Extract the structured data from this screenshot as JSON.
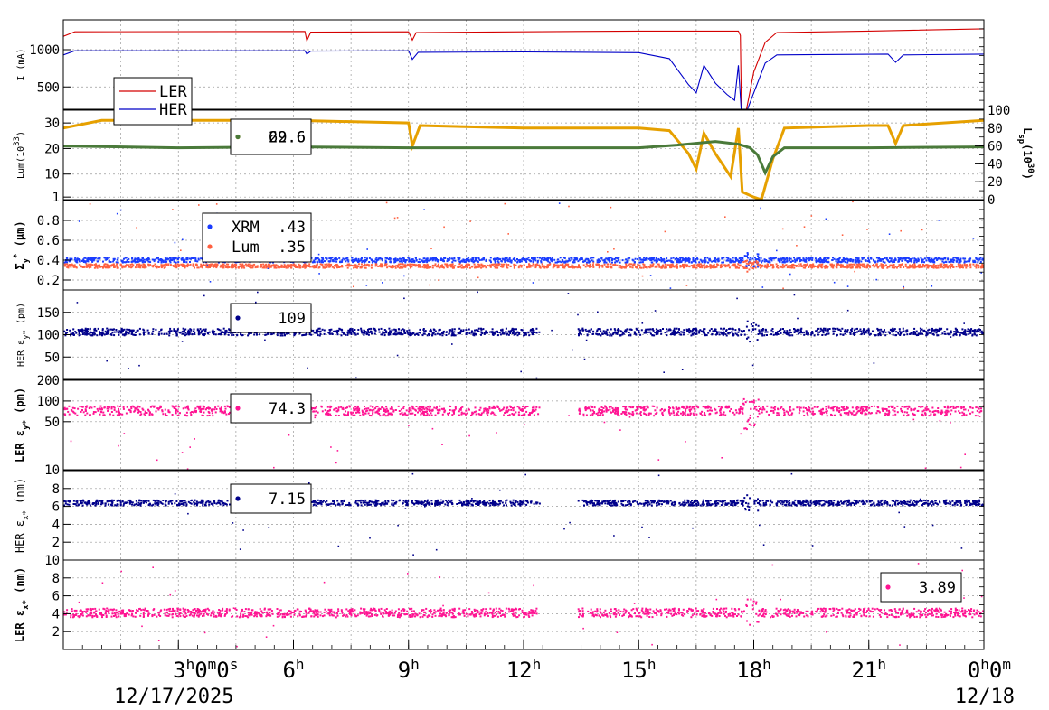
{
  "chart_data": {
    "type": "line",
    "x_axis": {
      "ticks": [
        {
          "hour": 3,
          "main": "3",
          "sup": "h",
          "tail": "0",
          "tail_sup": "m",
          "tail2": "0",
          "tail2_sup": "s"
        },
        {
          "hour": 6,
          "main": "6",
          "sup": "h"
        },
        {
          "hour": 9,
          "main": "9",
          "sup": "h"
        },
        {
          "hour": 12,
          "main": "12",
          "sup": "h"
        },
        {
          "hour": 15,
          "main": "15",
          "sup": "h"
        },
        {
          "hour": 18,
          "main": "18",
          "sup": "h"
        },
        {
          "hour": 21,
          "main": "21",
          "sup": "h"
        },
        {
          "hour": 24,
          "main": "0",
          "sup": "h",
          "tail": "0",
          "tail_sup": "m"
        }
      ],
      "start_date": "12/17/2025",
      "end_date": "12/18",
      "range_hours": [
        0,
        24
      ]
    },
    "panels": [
      {
        "id": "current",
        "ylabel": "I (mA)",
        "ylim": [
          200,
          1400
        ],
        "yticks": [
          500,
          1000
        ],
        "grid": true,
        "legend": [
          {
            "name": "LER",
            "color": "#d40000"
          },
          {
            "name": "HER",
            "color": "#0000c8"
          }
        ],
        "series": [
          {
            "name": "LER",
            "color": "#d40000",
            "points": [
              [
                0,
                1180
              ],
              [
                0.3,
                1240
              ],
              [
                6.3,
                1245
              ],
              [
                6.35,
                1120
              ],
              [
                6.45,
                1235
              ],
              [
                9.0,
                1240
              ],
              [
                9.1,
                1130
              ],
              [
                9.2,
                1230
              ],
              [
                12.0,
                1240
              ],
              [
                15.0,
                1250
              ],
              [
                17.6,
                1250
              ],
              [
                17.65,
                1190
              ],
              [
                17.68,
                160
              ],
              [
                17.8,
                170
              ],
              [
                18.0,
                700
              ],
              [
                18.3,
                1100
              ],
              [
                18.6,
                1230
              ],
              [
                21.0,
                1250
              ],
              [
                24.0,
                1280
              ]
            ]
          },
          {
            "name": "HER",
            "color": "#0000c8",
            "points": [
              [
                0,
                930
              ],
              [
                0.3,
                985
              ],
              [
                6.3,
                985
              ],
              [
                6.35,
                940
              ],
              [
                6.45,
                980
              ],
              [
                9.0,
                985
              ],
              [
                9.1,
                870
              ],
              [
                9.25,
                965
              ],
              [
                12.0,
                970
              ],
              [
                15.0,
                960
              ],
              [
                15.8,
                880
              ],
              [
                16.3,
                530
              ],
              [
                16.5,
                420
              ],
              [
                16.7,
                790
              ],
              [
                17.0,
                550
              ],
              [
                17.3,
                400
              ],
              [
                17.5,
                320
              ],
              [
                17.6,
                790
              ],
              [
                17.68,
                140
              ],
              [
                17.8,
                150
              ],
              [
                18.0,
                420
              ],
              [
                18.3,
                820
              ],
              [
                18.6,
                930
              ],
              [
                21.5,
                940
              ],
              [
                21.7,
                830
              ],
              [
                21.9,
                930
              ],
              [
                24.0,
                940
              ]
            ]
          }
        ]
      },
      {
        "id": "luminosity",
        "ylabel": "Lum(10",
        "ylabel_sup": "33",
        "ylabel_tail": ")",
        "ylim": [
          0,
          35
        ],
        "yticks": [
          1,
          10,
          20,
          30
        ],
        "y2label": "L",
        "y2label_sub": "sp",
        "y2label_mid": "(10",
        "y2label_sup": "30",
        "y2label_tail": ")",
        "y2lim": [
          0,
          100
        ],
        "y2ticks": [
          0,
          20,
          40,
          60,
          80,
          100
        ],
        "grid": true,
        "legend": [
          {
            "value": "29.6",
            "color": "#e6a000"
          },
          {
            "value": "62.6",
            "color": "#4a7a3a"
          }
        ],
        "series": [
          {
            "name": "Lum",
            "color": "#e6a000",
            "points": [
              [
                0,
                28
              ],
              [
                1,
                31
              ],
              [
                6,
                31
              ],
              [
                9,
                30
              ],
              [
                9.1,
                21
              ],
              [
                9.3,
                29
              ],
              [
                12,
                28
              ],
              [
                15,
                28
              ],
              [
                15.8,
                27
              ],
              [
                16.3,
                18
              ],
              [
                16.5,
                12
              ],
              [
                16.7,
                26
              ],
              [
                17.0,
                18
              ],
              [
                17.4,
                9
              ],
              [
                17.6,
                28
              ],
              [
                17.7,
                3
              ],
              [
                18.0,
                1
              ],
              [
                18.2,
                0
              ],
              [
                18.5,
                16
              ],
              [
                18.8,
                28
              ],
              [
                21,
                29
              ],
              [
                21.5,
                29
              ],
              [
                21.7,
                22
              ],
              [
                21.9,
                29
              ],
              [
                24,
                31
              ]
            ]
          },
          {
            "name": "Lsp",
            "color": "#4a7a3a",
            "axis": "y2",
            "points": [
              [
                0,
                60
              ],
              [
                3,
                58
              ],
              [
                6,
                59
              ],
              [
                9,
                58
              ],
              [
                12,
                58
              ],
              [
                15,
                58
              ],
              [
                16,
                61
              ],
              [
                17,
                65
              ],
              [
                17.6,
                62
              ],
              [
                17.9,
                58
              ],
              [
                18.1,
                50
              ],
              [
                18.3,
                30
              ],
              [
                18.5,
                48
              ],
              [
                18.8,
                58
              ],
              [
                21,
                58
              ],
              [
                24,
                59
              ]
            ]
          }
        ]
      },
      {
        "id": "beam-size",
        "ylabel": "Σ",
        "ylabel_sub": "y",
        "ylabel_sup": "*",
        "ylabel_tail": " (μm)",
        "ylim": [
          0.1,
          1.0
        ],
        "yticks": [
          0.2,
          0.4,
          0.6,
          0.8
        ],
        "grid": true,
        "legend": [
          {
            "name": "XRM",
            "value": ".43",
            "color": "#1a3cff"
          },
          {
            "name": "Lum",
            "value": ".35",
            "color": "#ff6040"
          }
        ],
        "series": [
          {
            "name": "XRM",
            "color": "#1a3cff",
            "level": 0.41,
            "spread": 0.025
          },
          {
            "name": "Lum",
            "color": "#ff6040",
            "level": 0.35,
            "spread": 0.02
          }
        ]
      },
      {
        "id": "her-ey",
        "ylabel": "HER ε",
        "ylabel_sub": "y*",
        "ylabel_tail": " (pm)",
        "ylim": [
          0,
          200
        ],
        "yticks": [
          50,
          100,
          150
        ],
        "grid": true,
        "legend": [
          {
            "value": "109",
            "color": "#00008b"
          }
        ],
        "series": [
          {
            "name": "HER ey",
            "color": "#00008b",
            "level": 108,
            "spread": 8
          }
        ]
      },
      {
        "id": "ler-ey",
        "ylabel": "LER ε",
        "ylabel_sub": "y*",
        "ylabel_tail": " (pm)",
        "log": true,
        "ylim": [
          10,
          200
        ],
        "yticks": [
          10,
          50,
          100,
          200
        ],
        "grid": true,
        "legend": [
          {
            "value": "74.3",
            "color": "#ff1493"
          }
        ],
        "series": [
          {
            "name": "LER ey",
            "color": "#ff1493",
            "level": 75,
            "spread": 12
          }
        ]
      },
      {
        "id": "her-ex",
        "ylabel": "HER ε",
        "ylabel_sub": "x*",
        "ylabel_tail": " (nm)",
        "ylim": [
          0,
          10
        ],
        "yticks": [
          2,
          4,
          6,
          8
        ],
        "grid": true,
        "legend": [
          {
            "value": "7.15",
            "color": "#00008b"
          }
        ],
        "series": [
          {
            "name": "HER ex",
            "color": "#00008b",
            "level": 6.5,
            "spread": 0.3
          }
        ]
      },
      {
        "id": "ler-ex",
        "ylabel": "LER ε",
        "ylabel_sub": "x*",
        "ylabel_tail": " (nm)",
        "ylim": [
          0,
          10
        ],
        "yticks": [
          2,
          4,
          6,
          8,
          10
        ],
        "grid": true,
        "legend": [
          {
            "value": "3.89",
            "color": "#ff1493"
          }
        ],
        "series": [
          {
            "name": "LER ex",
            "color": "#ff1493",
            "level": 4.2,
            "spread": 0.5
          }
        ]
      }
    ]
  }
}
